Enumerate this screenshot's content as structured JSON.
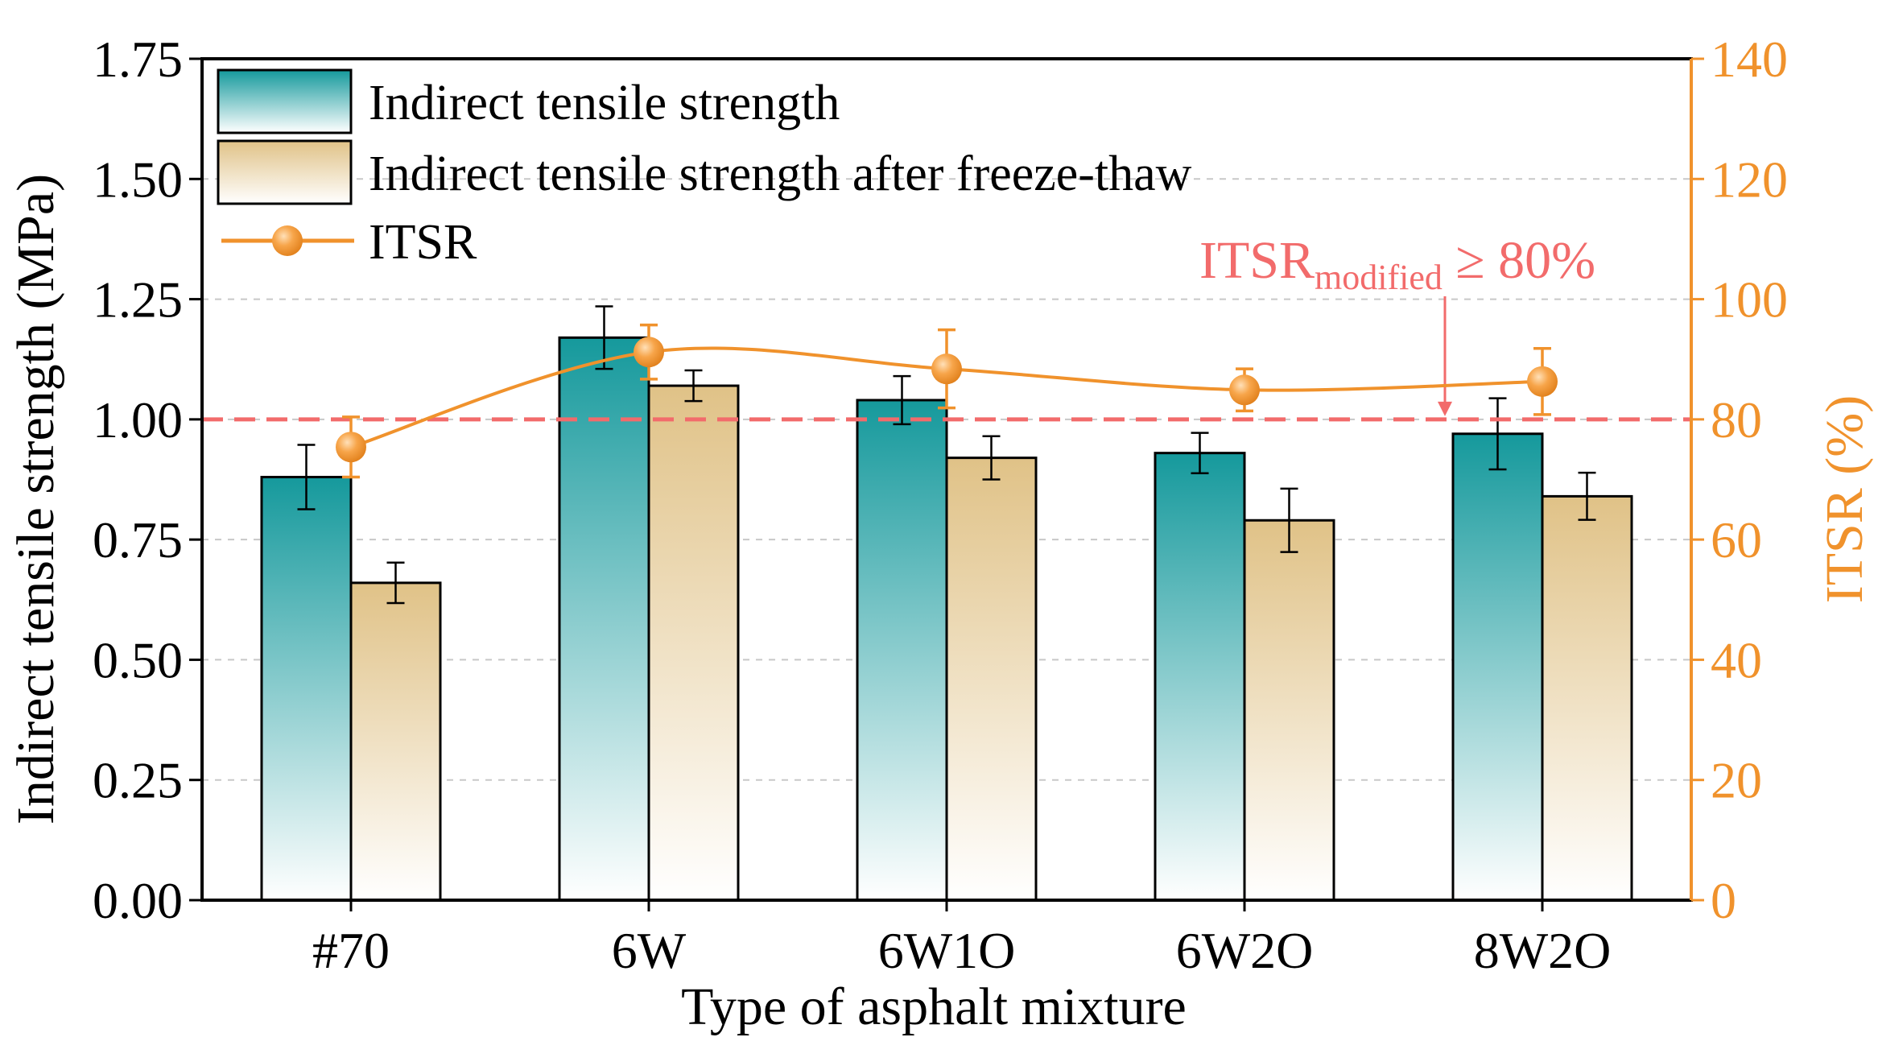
{
  "chart_data": {
    "type": "bar",
    "xlabel": "Type of asphalt mixture",
    "ylabel": "Indirect tensile strength (MPa)",
    "y2label": "ITSR (%)",
    "categories": [
      "#70",
      "6W",
      "6W1O",
      "6W2O",
      "8W2O"
    ],
    "ylim": [
      0,
      1.75
    ],
    "y2lim": [
      0,
      140
    ],
    "yticks": [
      "0.00",
      "0.25",
      "0.50",
      "0.75",
      "1.00",
      "1.25",
      "1.50",
      "1.75"
    ],
    "y2ticks": [
      "0",
      "20",
      "40",
      "60",
      "80",
      "100",
      "120",
      "140"
    ],
    "grid": "horizontal dashed",
    "legend_position": "top-left",
    "series": [
      {
        "name": "Indirect tensile strength",
        "kind": "bar",
        "values": [
          0.88,
          1.17,
          1.04,
          0.93,
          0.97
        ],
        "errors": [
          0.067,
          0.065,
          0.05,
          0.042,
          0.074
        ],
        "color_top": "#15999c",
        "color_bottom": "#ffffff"
      },
      {
        "name": "Indirect tensile strength after freeze-thaw",
        "kind": "bar",
        "values": [
          0.66,
          1.07,
          0.92,
          0.79,
          0.84
        ],
        "errors": [
          0.042,
          0.032,
          0.045,
          0.066,
          0.049
        ],
        "color_top": "#e0c287",
        "color_bottom": "#ffffff"
      },
      {
        "name": "ITSR",
        "kind": "line",
        "axis": "right",
        "values": [
          75.4,
          91.2,
          88.4,
          84.9,
          86.3
        ],
        "errors": [
          5.0,
          4.5,
          6.5,
          3.5,
          5.5
        ],
        "color": "#f0922c"
      }
    ],
    "threshold": {
      "value_percent": 80,
      "label_main": "ITSR",
      "label_sub": "modified",
      "label_tail": " ≥ 80%",
      "color": "#f26b6b"
    }
  }
}
